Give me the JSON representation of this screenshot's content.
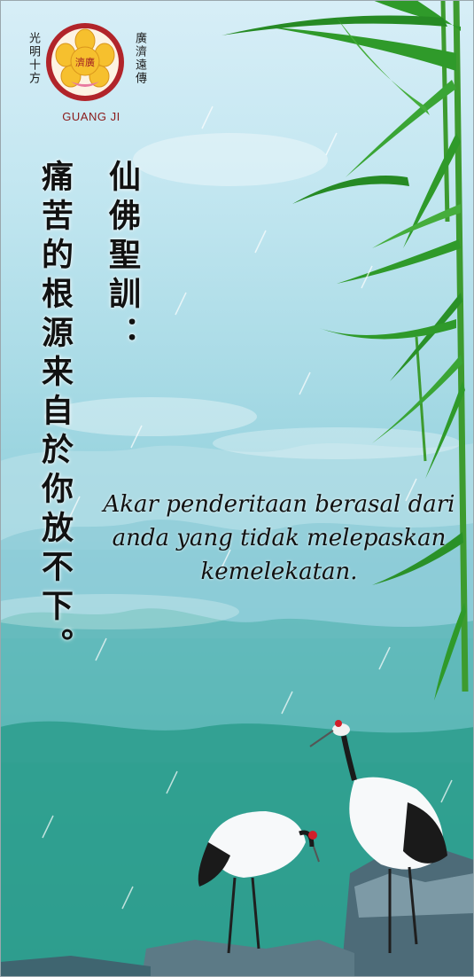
{
  "logo": {
    "brand_text": "GUANG JI",
    "emblem_chars": "濟廣",
    "left_motto": "光明十方",
    "right_motto": "廣濟遠傳"
  },
  "heading": "仙佛聖訓：",
  "teaching_chinese": "痛苦的根源来自於你放不下。",
  "teaching_malay": "Akar penderitaan berasal dari anda yang tidak melepaskan kemelekatan.",
  "colors": {
    "logo_red": "#b1242a",
    "petal_yellow": "#f6c02e",
    "bamboo_green": "#2f9a2a",
    "sky_top": "#d7eef7",
    "water_teal": "#2a8f84"
  },
  "decorations": [
    "bamboo-illustration",
    "crane-illustration",
    "rain-streaks",
    "misty-mountains"
  ]
}
